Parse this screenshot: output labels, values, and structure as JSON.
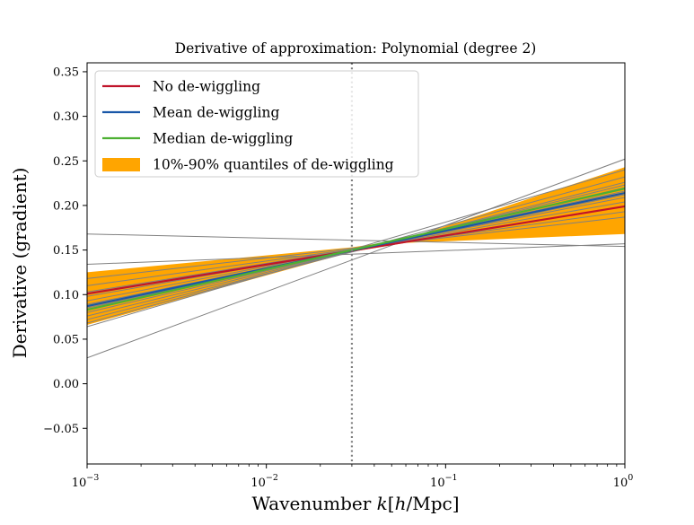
{
  "chart_data": {
    "type": "line",
    "title": "Derivative of approximation: Polynomial (degree 2)",
    "xlabel": "Wavenumber k[h/Mpc]",
    "ylabel": "Derivative (gradient)",
    "x_scale": "log",
    "xlim": [
      0.001,
      1
    ],
    "ylim": [
      -0.09,
      0.36
    ],
    "x_ticks": [
      {
        "value": 0.001,
        "base": "10",
        "exp": "−3"
      },
      {
        "value": 0.01,
        "base": "10",
        "exp": "−2"
      },
      {
        "value": 0.1,
        "base": "10",
        "exp": "−1"
      },
      {
        "value": 1,
        "base": "10",
        "exp": "0"
      }
    ],
    "y_ticks": [
      {
        "value": -0.05,
        "label": "−0.05"
      },
      {
        "value": 0.0,
        "label": "0.00"
      },
      {
        "value": 0.05,
        "label": "0.05"
      },
      {
        "value": 0.1,
        "label": "0.10"
      },
      {
        "value": 0.15,
        "label": "0.15"
      },
      {
        "value": 0.2,
        "label": "0.20"
      },
      {
        "value": 0.25,
        "label": "0.25"
      },
      {
        "value": 0.3,
        "label": "0.30"
      },
      {
        "value": 0.35,
        "label": "0.35"
      }
    ],
    "grid": false,
    "legend_position": "top-left",
    "reference_line": {
      "x": 0.03,
      "style": "dotted",
      "color": "#808080"
    },
    "band": {
      "name": "10%-90% quantiles of de-wiggling",
      "color": "#FFA500",
      "x": [
        0.001,
        0.03,
        0.06,
        1
      ],
      "lower": [
        0.066,
        0.148,
        0.158,
        0.168
      ],
      "upper": [
        0.125,
        0.153,
        0.162,
        0.243
      ]
    },
    "series": [
      {
        "name": "No de-wiggling",
        "color": "#C0142B",
        "x": [
          0.001,
          1
        ],
        "y": [
          0.101,
          0.199
        ]
      },
      {
        "name": "Mean de-wiggling",
        "color": "#1957A8",
        "x": [
          0.001,
          1
        ],
        "y": [
          0.087,
          0.214
        ]
      },
      {
        "name": "Median de-wiggling",
        "color": "#4DB032",
        "x": [
          0.001,
          1
        ],
        "y": [
          0.083,
          0.219
        ]
      }
    ],
    "individual_lines": {
      "color": "#808080",
      "lines": [
        {
          "x": [
            0.001,
            1
          ],
          "y": [
            0.168,
            0.154
          ]
        },
        {
          "x": [
            0.001,
            1
          ],
          "y": [
            0.134,
            0.157
          ]
        },
        {
          "x": [
            0.001,
            1
          ],
          "y": [
            0.029,
            0.252
          ]
        },
        {
          "x": [
            0.001,
            1
          ],
          "y": [
            0.064,
            0.24
          ]
        },
        {
          "x": [
            0.001,
            1
          ],
          "y": [
            0.068,
            0.232
          ]
        },
        {
          "x": [
            0.001,
            1
          ],
          "y": [
            0.072,
            0.226
          ]
        },
        {
          "x": [
            0.001,
            1
          ],
          "y": [
            0.076,
            0.223
          ]
        },
        {
          "x": [
            0.001,
            1
          ],
          "y": [
            0.08,
            0.22
          ]
        },
        {
          "x": [
            0.001,
            1
          ],
          "y": [
            0.085,
            0.216
          ]
        },
        {
          "x": [
            0.001,
            1
          ],
          "y": [
            0.089,
            0.212
          ]
        },
        {
          "x": [
            0.001,
            1
          ],
          "y": [
            0.093,
            0.209
          ]
        },
        {
          "x": [
            0.001,
            1
          ],
          "y": [
            0.098,
            0.204
          ]
        },
        {
          "x": [
            0.001,
            1
          ],
          "y": [
            0.103,
            0.199
          ]
        },
        {
          "x": [
            0.001,
            1
          ],
          "y": [
            0.11,
            0.193
          ]
        },
        {
          "x": [
            0.001,
            1
          ],
          "y": [
            0.118,
            0.187
          ]
        }
      ]
    }
  }
}
